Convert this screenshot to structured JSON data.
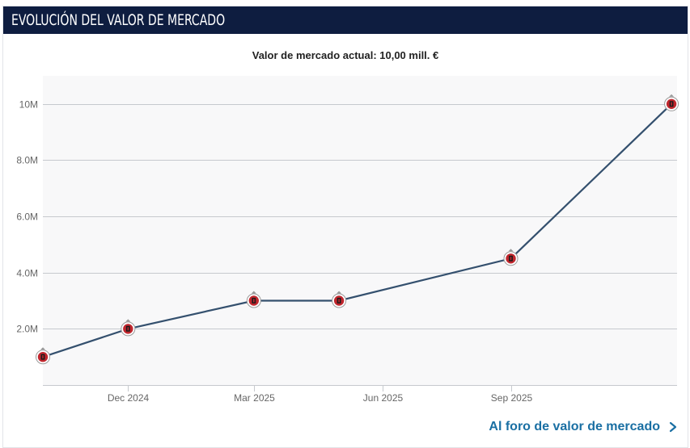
{
  "header": {
    "title": "EVOLUCIÓN DEL VALOR DE MERCADO"
  },
  "footer": {
    "link_label": "Al foro de valor de mercado"
  },
  "chart_data": {
    "type": "line",
    "title": "Valor de mercado actual: 10,00 mill. €",
    "xlabel": "",
    "ylabel": "",
    "x_axis": "date",
    "x": [
      "2024-10-01",
      "2024-12-01",
      "2025-03-01",
      "2025-05-01",
      "2025-09-01",
      "2025-12-25"
    ],
    "series": [
      {
        "values": [
          1000000,
          2000000,
          3000000,
          3000000,
          4500000,
          10000000
        ]
      }
    ],
    "ylim": [
      0,
      11000000
    ],
    "xlim": [
      "2024-10-01",
      "2025-12-29"
    ],
    "x_ticks": [
      {
        "date": "2024-12-01",
        "label": "Dec 2024"
      },
      {
        "date": "2025-03-01",
        "label": "Mar 2025"
      },
      {
        "date": "2025-06-01",
        "label": "Jun 2025"
      },
      {
        "date": "2025-09-01",
        "label": "Sep 2025"
      }
    ],
    "y_ticks": [
      {
        "value": 2000000,
        "label": "2.0M"
      },
      {
        "value": 4000000,
        "label": "4.0M"
      },
      {
        "value": 6000000,
        "label": "6.0M"
      },
      {
        "value": 8000000,
        "label": "8.0M"
      },
      {
        "value": 10000000,
        "label": "10M"
      }
    ],
    "grid": true,
    "legend": "none",
    "colors": {
      "line": "#34506e",
      "plot_background": "#f8f8f9",
      "grid": "#c6c9ce",
      "marker_red": "#c0262d",
      "marker_dark": "#1b1b1b"
    },
    "marker_icon": "club-crest-icon"
  }
}
